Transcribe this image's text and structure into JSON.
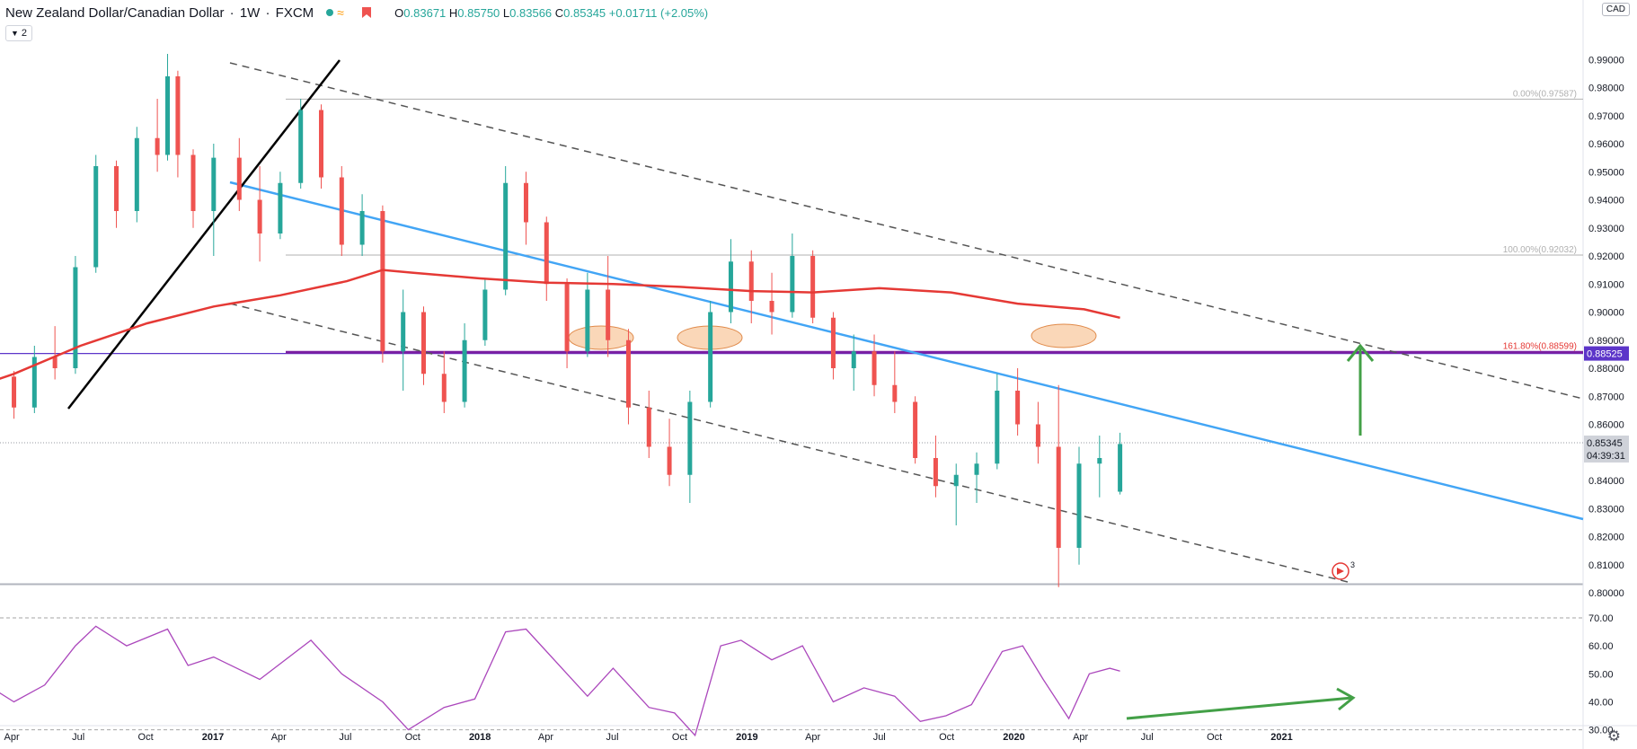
{
  "header": {
    "symbol": "New Zealand Dollar/Canadian Dollar",
    "interval": "1W",
    "exchange": "FXCM",
    "open_label": "O",
    "open": "0.83671",
    "high_label": "H",
    "high": "0.85750",
    "low_label": "L",
    "low": "0.83566",
    "close_label": "C",
    "close": "0.85345",
    "change": "+0.01711 (+2.05%)",
    "wave_glyph": "≈"
  },
  "indicator_count": "2",
  "currency": "CAD",
  "colors": {
    "up": "#26a69a",
    "down": "#ef5350",
    "ma": "#e53935",
    "trendline": "#42a5f5",
    "channel": "#555555",
    "level_line": "#7b1fa2",
    "level_h": "#5c35c9",
    "rsi": "#ab47bc",
    "arrow": "#43a047",
    "ellipse_fill": "#f8c9a0",
    "ellipse_stroke": "#e08a4a"
  },
  "price_axis": {
    "ticks": [
      "0.99000",
      "0.98000",
      "0.97000",
      "0.96000",
      "0.95000",
      "0.94000",
      "0.93000",
      "0.92000",
      "0.91000",
      "0.90000",
      "0.89000",
      "0.88000",
      "0.87000",
      "0.86000",
      "0.85000",
      "0.84000",
      "0.83000",
      "0.82000",
      "0.81000",
      "0.80000"
    ],
    "level_label": "0.88525",
    "last_price_label": "0.85345",
    "countdown": "04:39:31"
  },
  "fib_labels": [
    {
      "text": "0.00%(0.97587)",
      "price": 0.97587
    },
    {
      "text": "100.00%(0.92032)",
      "price": 0.92032
    },
    {
      "text": "161.80%(0.88599)",
      "price": 0.88599
    }
  ],
  "rsi_axis": {
    "ticks": [
      "70.00",
      "60.00",
      "50.00",
      "40.00",
      "30.00"
    ]
  },
  "time_axis": {
    "labels": [
      "Apr",
      "Jul",
      "Oct",
      "2017",
      "Apr",
      "Jul",
      "Oct",
      "2018",
      "Apr",
      "Jul",
      "Oct",
      "2019",
      "Apr",
      "Jul",
      "Oct",
      "2020",
      "Apr",
      "Jul",
      "Oct",
      "2021"
    ]
  },
  "event_marker_count": "3",
  "chart_data": {
    "type": "candlestick",
    "title": "New Zealand Dollar/Canadian Dollar, 1W, FXCM",
    "ylim": [
      0.8,
      0.995
    ],
    "x_range": [
      "2016-01",
      "2021-02"
    ],
    "moving_average_points": [
      [
        "2016-01-04",
        0.87
      ],
      [
        "2016-04-04",
        0.878
      ],
      [
        "2016-07-04",
        0.888
      ],
      [
        "2016-10-03",
        0.896
      ],
      [
        "2017-01-02",
        0.902
      ],
      [
        "2017-04-03",
        0.906
      ],
      [
        "2017-07-03",
        0.911
      ],
      [
        "2017-08-21",
        0.915
      ],
      [
        "2017-10-02",
        0.914
      ],
      [
        "2018-01-01",
        0.912
      ],
      [
        "2018-04-02",
        0.9105
      ],
      [
        "2018-07-02",
        0.91
      ],
      [
        "2018-10-01",
        0.909
      ],
      [
        "2019-01-07",
        0.9075
      ],
      [
        "2019-04-01",
        0.907
      ],
      [
        "2019-07-01",
        0.9085
      ],
      [
        "2019-10-07",
        0.907
      ],
      [
        "2020-01-06",
        0.903
      ],
      [
        "2020-04-06",
        0.901
      ],
      [
        "2020-05-25",
        0.898
      ]
    ],
    "candles_weekly_approx": [
      [
        "2016-01-04",
        0.87,
        0.88,
        0.866,
        0.878
      ],
      [
        "2016-02-01",
        0.878,
        0.889,
        0.874,
        0.886
      ],
      [
        "2016-03-07",
        0.886,
        0.89,
        0.874,
        0.877
      ],
      [
        "2016-04-04",
        0.877,
        0.879,
        0.862,
        0.866
      ],
      [
        "2016-05-02",
        0.866,
        0.888,
        0.864,
        0.884
      ],
      [
        "2016-05-30",
        0.884,
        0.895,
        0.876,
        0.88
      ],
      [
        "2016-06-27",
        0.88,
        0.92,
        0.878,
        0.916
      ],
      [
        "2016-07-25",
        0.916,
        0.956,
        0.914,
        0.952
      ],
      [
        "2016-08-22",
        0.952,
        0.954,
        0.93,
        0.936
      ],
      [
        "2016-09-19",
        0.936,
        0.966,
        0.932,
        0.962
      ],
      [
        "2016-10-17",
        0.962,
        0.976,
        0.95,
        0.956
      ],
      [
        "2016-10-31",
        0.956,
        0.992,
        0.954,
        0.984
      ],
      [
        "2016-11-14",
        0.984,
        0.986,
        0.948,
        0.956
      ],
      [
        "2016-12-05",
        0.956,
        0.958,
        0.93,
        0.936
      ],
      [
        "2017-01-02",
        0.936,
        0.96,
        0.92,
        0.955
      ],
      [
        "2017-02-06",
        0.955,
        0.962,
        0.936,
        0.94
      ],
      [
        "2017-03-06",
        0.94,
        0.952,
        0.918,
        0.928
      ],
      [
        "2017-04-03",
        0.928,
        0.95,
        0.926,
        0.946
      ],
      [
        "2017-05-01",
        0.946,
        0.976,
        0.944,
        0.972
      ],
      [
        "2017-05-29",
        0.972,
        0.974,
        0.944,
        0.948
      ],
      [
        "2017-06-26",
        0.948,
        0.952,
        0.92,
        0.924
      ],
      [
        "2017-07-24",
        0.924,
        0.942,
        0.92,
        0.936
      ],
      [
        "2017-08-21",
        0.936,
        0.938,
        0.882,
        0.886
      ],
      [
        "2017-09-18",
        0.886,
        0.908,
        0.872,
        0.9
      ],
      [
        "2017-10-16",
        0.9,
        0.902,
        0.874,
        0.878
      ],
      [
        "2017-11-13",
        0.878,
        0.886,
        0.864,
        0.868
      ],
      [
        "2017-12-11",
        0.868,
        0.896,
        0.866,
        0.89
      ],
      [
        "2018-01-08",
        0.89,
        0.912,
        0.888,
        0.908
      ],
      [
        "2018-02-05",
        0.908,
        0.952,
        0.906,
        0.946
      ],
      [
        "2018-03-05",
        0.946,
        0.95,
        0.924,
        0.932
      ],
      [
        "2018-04-02",
        0.932,
        0.934,
        0.904,
        0.91
      ],
      [
        "2018-04-30",
        0.91,
        0.912,
        0.88,
        0.886
      ],
      [
        "2018-05-28",
        0.886,
        0.914,
        0.884,
        0.908
      ],
      [
        "2018-06-25",
        0.908,
        0.92,
        0.884,
        0.89
      ],
      [
        "2018-07-23",
        0.89,
        0.894,
        0.86,
        0.866
      ],
      [
        "2018-08-20",
        0.866,
        0.872,
        0.848,
        0.852
      ],
      [
        "2018-09-17",
        0.852,
        0.862,
        0.838,
        0.842
      ],
      [
        "2018-10-15",
        0.842,
        0.872,
        0.832,
        0.868
      ],
      [
        "2018-11-12",
        0.868,
        0.904,
        0.866,
        0.9
      ],
      [
        "2018-12-10",
        0.9,
        0.926,
        0.896,
        0.918
      ],
      [
        "2019-01-07",
        0.918,
        0.922,
        0.896,
        0.904
      ],
      [
        "2019-02-04",
        0.904,
        0.914,
        0.892,
        0.9
      ],
      [
        "2019-03-04",
        0.9,
        0.928,
        0.898,
        0.92
      ],
      [
        "2019-04-01",
        0.92,
        0.922,
        0.896,
        0.898
      ],
      [
        "2019-04-29",
        0.898,
        0.9,
        0.876,
        0.88
      ],
      [
        "2019-05-27",
        0.88,
        0.892,
        0.872,
        0.886
      ],
      [
        "2019-06-24",
        0.886,
        0.892,
        0.87,
        0.874
      ],
      [
        "2019-07-22",
        0.874,
        0.886,
        0.864,
        0.868
      ],
      [
        "2019-08-19",
        0.868,
        0.87,
        0.846,
        0.848
      ],
      [
        "2019-09-16",
        0.848,
        0.856,
        0.834,
        0.838
      ],
      [
        "2019-10-14",
        0.838,
        0.846,
        0.824,
        0.842
      ],
      [
        "2019-11-11",
        0.842,
        0.85,
        0.832,
        0.846
      ],
      [
        "2019-12-09",
        0.846,
        0.878,
        0.844,
        0.872
      ],
      [
        "2020-01-06",
        0.872,
        0.88,
        0.856,
        0.86
      ],
      [
        "2020-02-03",
        0.86,
        0.868,
        0.846,
        0.852
      ],
      [
        "2020-03-02",
        0.852,
        0.874,
        0.802,
        0.816
      ],
      [
        "2020-03-30",
        0.816,
        0.852,
        0.81,
        0.846
      ],
      [
        "2020-04-27",
        0.846,
        0.856,
        0.834,
        0.848
      ],
      [
        "2020-05-25",
        0.836,
        0.857,
        0.835,
        0.853
      ]
    ],
    "rsi_points": [
      [
        "2016-01-04",
        55
      ],
      [
        "2016-02-15",
        48
      ],
      [
        "2016-04-04",
        40
      ],
      [
        "2016-05-16",
        46
      ],
      [
        "2016-06-27",
        60
      ],
      [
        "2016-07-25",
        67
      ],
      [
        "2016-09-05",
        60
      ],
      [
        "2016-10-31",
        66
      ],
      [
        "2016-11-28",
        53
      ],
      [
        "2017-01-02",
        56
      ],
      [
        "2017-03-06",
        48
      ],
      [
        "2017-05-15",
        62
      ],
      [
        "2017-06-26",
        50
      ],
      [
        "2017-08-21",
        40
      ],
      [
        "2017-09-25",
        30
      ],
      [
        "2017-11-13",
        38
      ],
      [
        "2017-12-25",
        41
      ],
      [
        "2018-02-05",
        65
      ],
      [
        "2018-03-05",
        66
      ],
      [
        "2018-04-30",
        50
      ],
      [
        "2018-05-28",
        42
      ],
      [
        "2018-07-02",
        52
      ],
      [
        "2018-08-20",
        38
      ],
      [
        "2018-09-24",
        36
      ],
      [
        "2018-10-22",
        28
      ],
      [
        "2018-11-26",
        60
      ],
      [
        "2018-12-24",
        62
      ],
      [
        "2019-02-04",
        55
      ],
      [
        "2019-03-18",
        60
      ],
      [
        "2019-04-29",
        40
      ],
      [
        "2019-06-10",
        45
      ],
      [
        "2019-07-22",
        42
      ],
      [
        "2019-08-26",
        33
      ],
      [
        "2019-09-30",
        35
      ],
      [
        "2019-11-04",
        39
      ],
      [
        "2019-12-16",
        58
      ],
      [
        "2020-01-13",
        60
      ],
      [
        "2020-02-10",
        48
      ],
      [
        "2020-03-16",
        34
      ],
      [
        "2020-04-13",
        50
      ],
      [
        "2020-05-11",
        52
      ],
      [
        "2020-05-25",
        51
      ]
    ]
  }
}
